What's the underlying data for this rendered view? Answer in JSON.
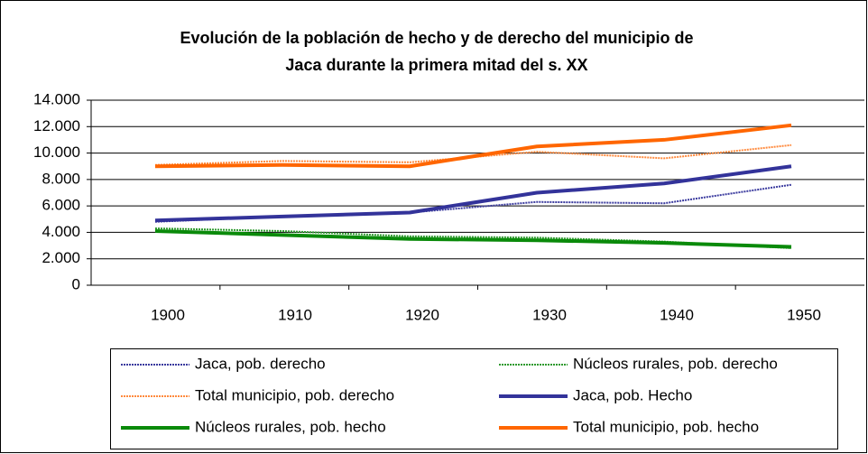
{
  "chart_data": {
    "type": "line",
    "title": [
      "Evolución de la población de hecho y de derecho del municipio de",
      "Jaca durante la primera mitad del s. XX"
    ],
    "categories": [
      "1900",
      "1910",
      "1920",
      "1930",
      "1940",
      "1950"
    ],
    "series": [
      {
        "name": "Jaca, pob. derecho",
        "color": "#3a3a9e",
        "style": "dotted",
        "values": [
          4800,
          5200,
          5500,
          6300,
          6200,
          7600
        ]
      },
      {
        "name": "Núcleos rurales, pob. derecho",
        "color": "#2e9a2e",
        "style": "dotted",
        "values": [
          4300,
          4100,
          3700,
          3600,
          3300,
          2800
        ]
      },
      {
        "name": "Total municipio, pob. derecho",
        "color": "#ff8a3d",
        "style": "dotted",
        "values": [
          9100,
          9400,
          9300,
          10100,
          9600,
          10600
        ]
      },
      {
        "name": "Jaca, pob. Hecho",
        "color": "#33339a",
        "style": "solid",
        "values": [
          4900,
          5200,
          5500,
          7000,
          7700,
          9000
        ]
      },
      {
        "name": "Núcleos rurales, pob. hecho",
        "color": "#0a8a0a",
        "style": "solid",
        "values": [
          4100,
          3800,
          3500,
          3400,
          3200,
          2900
        ]
      },
      {
        "name": "Total municipio, pob. hecho",
        "color": "#ff6600",
        "style": "solid",
        "values": [
          9000,
          9100,
          9000,
          10500,
          11000,
          12100
        ]
      }
    ],
    "ylim": [
      0,
      14000
    ],
    "yticks": [
      0,
      {
        "value": 2000,
        "label": "2.000"
      },
      {
        "value": 4000,
        "label": "4.000"
      },
      {
        "value": 6000,
        "label": "6.000"
      },
      {
        "value": 8000,
        "label": "8.000"
      },
      {
        "value": 10000,
        "label": "10.000"
      },
      {
        "value": 12000,
        "label": "12.000"
      },
      {
        "value": 14000,
        "label": "14.000"
      }
    ],
    "grid": true,
    "legend": "bottom"
  }
}
